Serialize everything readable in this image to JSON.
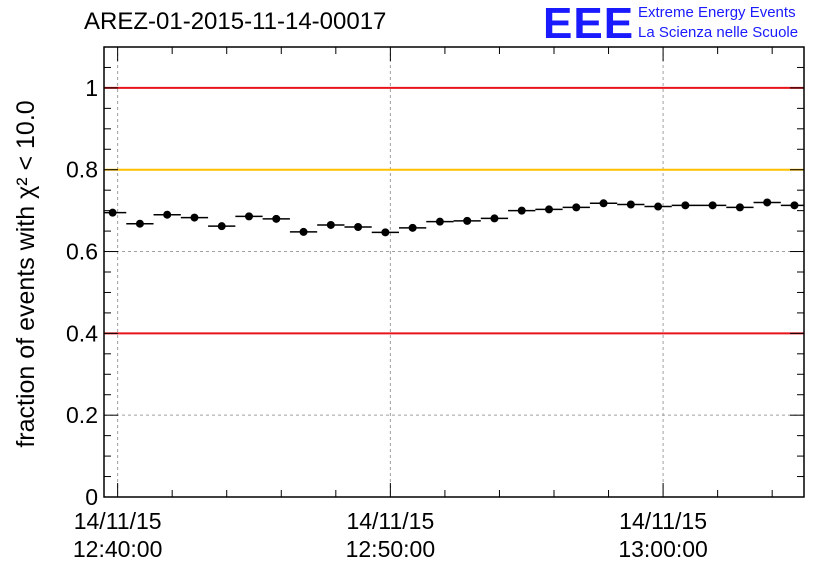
{
  "title": "AREZ-01-2015-11-14-00017",
  "logo": {
    "acronym": "EEE",
    "line1": "Extreme Energy Events",
    "line2": "La Scienza nelle Scuole",
    "color": "#1a1aff"
  },
  "chart_data": {
    "type": "scatter",
    "ylabel": "fraction of events with χ² < 10.0",
    "ylim": [
      0,
      1.1
    ],
    "yticks": [
      0,
      0.2,
      0.4,
      0.6,
      0.8,
      1
    ],
    "ytick_labels": [
      "0",
      "0.2",
      "0.4",
      "0.6",
      "0.8",
      "1"
    ],
    "xlim": [
      "12:39:30",
      "13:05:10"
    ],
    "xtick_labels": [
      {
        "time": "12:40:00",
        "date": "14/11/15",
        "clock": "12:40:00"
      },
      {
        "time": "12:50:00",
        "date": "14/11/15",
        "clock": "12:50:00"
      },
      {
        "time": "13:00:00",
        "date": "14/11/15",
        "clock": "13:00:00"
      }
    ],
    "grid": true,
    "reference_lines": [
      {
        "y": 1.0,
        "color": "#e8141a"
      },
      {
        "y": 0.8,
        "color": "#ffc000"
      },
      {
        "y": 0.4,
        "color": "#e8141a"
      }
    ],
    "points": [
      {
        "x": "12:39:49",
        "y": 0.695
      },
      {
        "x": "12:40:49",
        "y": 0.668
      },
      {
        "x": "12:41:49",
        "y": 0.69
      },
      {
        "x": "12:42:49",
        "y": 0.683
      },
      {
        "x": "12:43:49",
        "y": 0.662
      },
      {
        "x": "12:44:49",
        "y": 0.686
      },
      {
        "x": "12:45:49",
        "y": 0.68
      },
      {
        "x": "12:46:49",
        "y": 0.648
      },
      {
        "x": "12:47:49",
        "y": 0.665
      },
      {
        "x": "12:48:49",
        "y": 0.66
      },
      {
        "x": "12:49:49",
        "y": 0.647
      },
      {
        "x": "12:50:49",
        "y": 0.658
      },
      {
        "x": "12:51:49",
        "y": 0.673
      },
      {
        "x": "12:52:49",
        "y": 0.675
      },
      {
        "x": "12:53:49",
        "y": 0.681
      },
      {
        "x": "12:54:49",
        "y": 0.7
      },
      {
        "x": "12:55:49",
        "y": 0.703
      },
      {
        "x": "12:56:49",
        "y": 0.708
      },
      {
        "x": "12:57:49",
        "y": 0.718
      },
      {
        "x": "12:58:49",
        "y": 0.715
      },
      {
        "x": "12:59:49",
        "y": 0.71
      },
      {
        "x": "13:00:49",
        "y": 0.713
      },
      {
        "x": "13:01:49",
        "y": 0.713
      },
      {
        "x": "13:02:49",
        "y": 0.708
      },
      {
        "x": "13:03:49",
        "y": 0.72
      },
      {
        "x": "13:04:49",
        "y": 0.713
      }
    ],
    "x_halfwidth_seconds": 30
  }
}
